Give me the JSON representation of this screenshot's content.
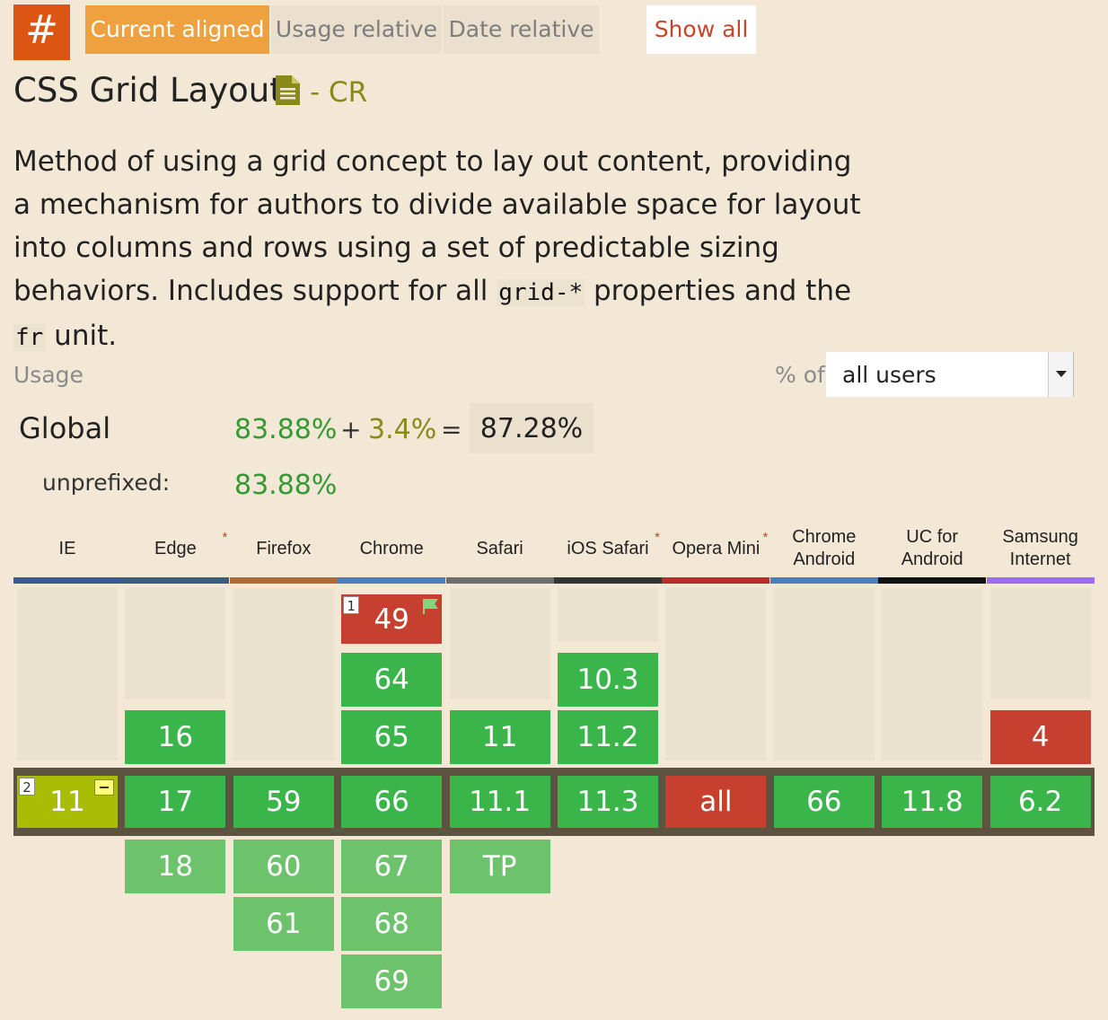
{
  "nav": {
    "hash": "#",
    "tabs": [
      {
        "label": "Current aligned",
        "active": true
      },
      {
        "label": "Usage relative",
        "active": false
      },
      {
        "label": "Date relative",
        "active": false
      }
    ],
    "show_all": "Show all"
  },
  "feature": {
    "title": "CSS Grid Layout",
    "status": "- CR",
    "desc_1": "Method of using a grid concept to lay out content, providing a mechanism for authors to divide available space for layout into columns and rows using a set of predictable sizing behaviors. Includes support for all ",
    "code_1": "grid-*",
    "desc_2": " properties and the ",
    "code_2": "fr",
    "desc_3": " unit."
  },
  "usage": {
    "label": "Usage",
    "pct_of": "% of",
    "select_value": "all users",
    "global_label": "Global",
    "supported": "83.88%",
    "plus": "+",
    "partial": "3.4%",
    "equals": "=",
    "total": "87.28%",
    "unprefixed_label": "unprefixed:",
    "unprefixed_value": "83.88%"
  },
  "colors": {
    "supported": "#39b54a",
    "not_supported": "#c7402f",
    "partial": "#a8bd04",
    "future": "#6cc36c",
    "accent": "#eea13e"
  },
  "browsers": [
    {
      "name": "IE",
      "star": false,
      "color": "#3b5998"
    },
    {
      "name": "Edge",
      "star": true,
      "color": "#3c5a85"
    },
    {
      "name": "Firefox",
      "star": false,
      "color": "#b46a2c"
    },
    {
      "name": "Chrome",
      "star": false,
      "color": "#4a7fbf"
    },
    {
      "name": "Safari",
      "star": false,
      "color": "#6e6e6e"
    },
    {
      "name": "iOS Safari",
      "star": true,
      "color": "#333333"
    },
    {
      "name": "Opera Mini",
      "star": true,
      "color": "#b82c2c"
    },
    {
      "name": "Chrome\nAndroid",
      "star": false,
      "color": "#4a7fbf"
    },
    {
      "name": "UC for\nAndroid",
      "star": false,
      "color": "#111111"
    },
    {
      "name": "Samsung\nInternet",
      "star": false,
      "color": "#9c6cf2"
    }
  ],
  "table": {
    "past": [
      [
        null,
        null,
        null,
        {
          "v": "49",
          "s": "n",
          "note": "1",
          "flag": true
        },
        null,
        null,
        null,
        null,
        null,
        null
      ],
      [
        null,
        null,
        null,
        {
          "v": "64",
          "s": "y"
        },
        null,
        {
          "v": "10.3",
          "s": "y"
        },
        null,
        null,
        null,
        null
      ],
      [
        null,
        {
          "v": "16",
          "s": "y"
        },
        null,
        {
          "v": "65",
          "s": "y"
        },
        {
          "v": "11",
          "s": "y"
        },
        {
          "v": "11.2",
          "s": "y"
        },
        null,
        null,
        null,
        {
          "v": "4",
          "s": "n"
        }
      ]
    ],
    "current": [
      {
        "v": "11",
        "s": "a",
        "note": "2",
        "partial_icon": true
      },
      {
        "v": "17",
        "s": "y"
      },
      {
        "v": "59",
        "s": "y"
      },
      {
        "v": "66",
        "s": "y"
      },
      {
        "v": "11.1",
        "s": "y"
      },
      {
        "v": "11.3",
        "s": "y"
      },
      {
        "v": "all",
        "s": "n"
      },
      {
        "v": "66",
        "s": "y"
      },
      {
        "v": "11.8",
        "s": "y"
      },
      {
        "v": "6.2",
        "s": "y"
      }
    ],
    "future": [
      [
        null,
        {
          "v": "18",
          "s": "f"
        },
        {
          "v": "60",
          "s": "f"
        },
        {
          "v": "67",
          "s": "f"
        },
        {
          "v": "TP",
          "s": "f"
        },
        null,
        null,
        null,
        null,
        null
      ],
      [
        null,
        null,
        {
          "v": "61",
          "s": "f"
        },
        {
          "v": "68",
          "s": "f"
        },
        null,
        null,
        null,
        null,
        null,
        null
      ],
      [
        null,
        null,
        null,
        {
          "v": "69",
          "s": "f"
        },
        null,
        null,
        null,
        null,
        null,
        null
      ]
    ]
  }
}
